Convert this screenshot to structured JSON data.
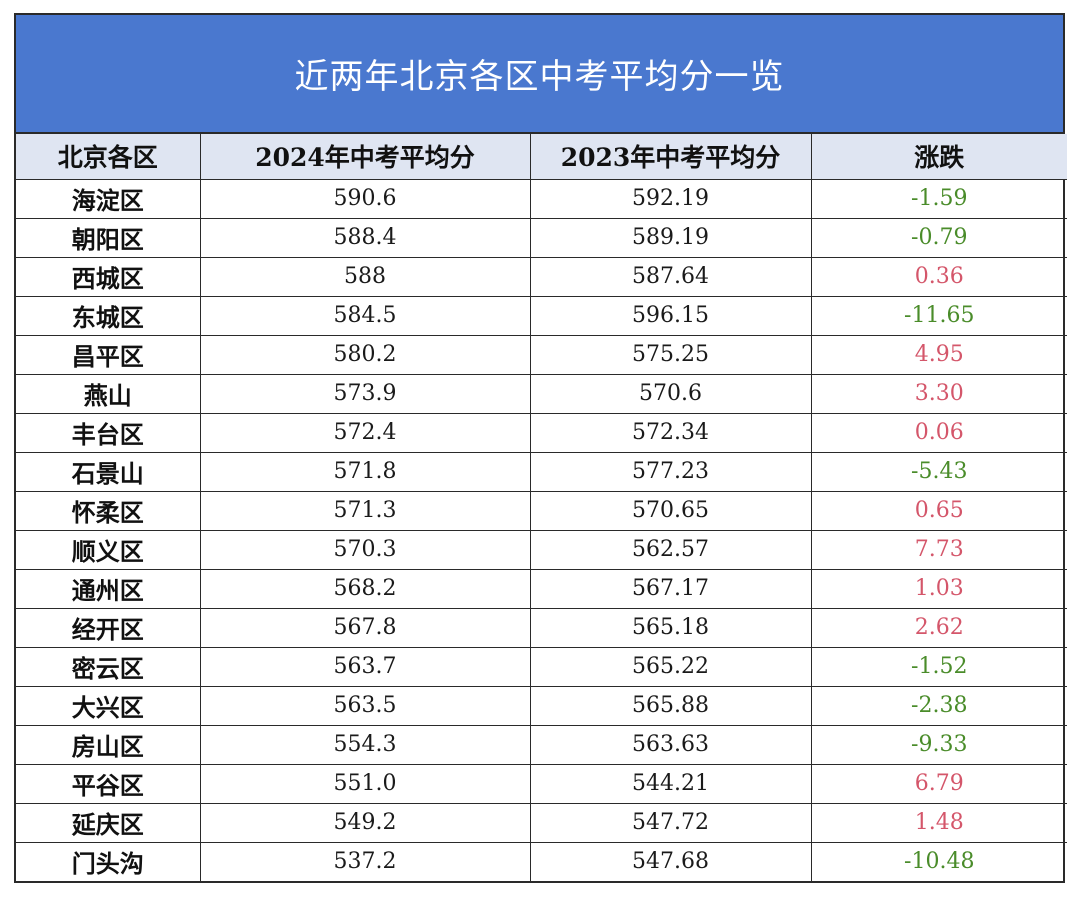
{
  "title": "近两年北京各区中考平均分一览",
  "headers": [
    "北京各区",
    "2024年中考平均分",
    "2023年中考平均分",
    "涨跌"
  ],
  "colors": {
    "title_bg": "#4a78cf",
    "header_bg": "#dfe5f2",
    "increase": "#d4566a",
    "decrease": "#4a8c2a"
  },
  "rows": [
    {
      "district": "海淀区",
      "score_2024": "590.6",
      "score_2023": "592.19",
      "change": "-1.59",
      "trend": "down"
    },
    {
      "district": "朝阳区",
      "score_2024": "588.4",
      "score_2023": "589.19",
      "change": "-0.79",
      "trend": "down"
    },
    {
      "district": "西城区",
      "score_2024": "588",
      "score_2023": "587.64",
      "change": "0.36",
      "trend": "up"
    },
    {
      "district": "东城区",
      "score_2024": "584.5",
      "score_2023": "596.15",
      "change": "-11.65",
      "trend": "down"
    },
    {
      "district": "昌平区",
      "score_2024": "580.2",
      "score_2023": "575.25",
      "change": "4.95",
      "trend": "up"
    },
    {
      "district": "燕山",
      "score_2024": "573.9",
      "score_2023": "570.6",
      "change": "3.30",
      "trend": "up"
    },
    {
      "district": "丰台区",
      "score_2024": "572.4",
      "score_2023": "572.34",
      "change": "0.06",
      "trend": "up"
    },
    {
      "district": "石景山",
      "score_2024": "571.8",
      "score_2023": "577.23",
      "change": "-5.43",
      "trend": "down"
    },
    {
      "district": "怀柔区",
      "score_2024": "571.3",
      "score_2023": "570.65",
      "change": "0.65",
      "trend": "up"
    },
    {
      "district": "顺义区",
      "score_2024": "570.3",
      "score_2023": "562.57",
      "change": "7.73",
      "trend": "up"
    },
    {
      "district": "通州区",
      "score_2024": "568.2",
      "score_2023": "567.17",
      "change": "1.03",
      "trend": "up"
    },
    {
      "district": "经开区",
      "score_2024": "567.8",
      "score_2023": "565.18",
      "change": "2.62",
      "trend": "up"
    },
    {
      "district": "密云区",
      "score_2024": "563.7",
      "score_2023": "565.22",
      "change": "-1.52",
      "trend": "down"
    },
    {
      "district": "大兴区",
      "score_2024": "563.5",
      "score_2023": "565.88",
      "change": "-2.38",
      "trend": "down"
    },
    {
      "district": "房山区",
      "score_2024": "554.3",
      "score_2023": "563.63",
      "change": "-9.33",
      "trend": "down"
    },
    {
      "district": "平谷区",
      "score_2024": "551.0",
      "score_2023": "544.21",
      "change": "6.79",
      "trend": "up"
    },
    {
      "district": "延庆区",
      "score_2024": "549.2",
      "score_2023": "547.72",
      "change": "1.48",
      "trend": "up"
    },
    {
      "district": "门头沟",
      "score_2024": "537.2",
      "score_2023": "547.68",
      "change": "-10.48",
      "trend": "down"
    }
  ]
}
